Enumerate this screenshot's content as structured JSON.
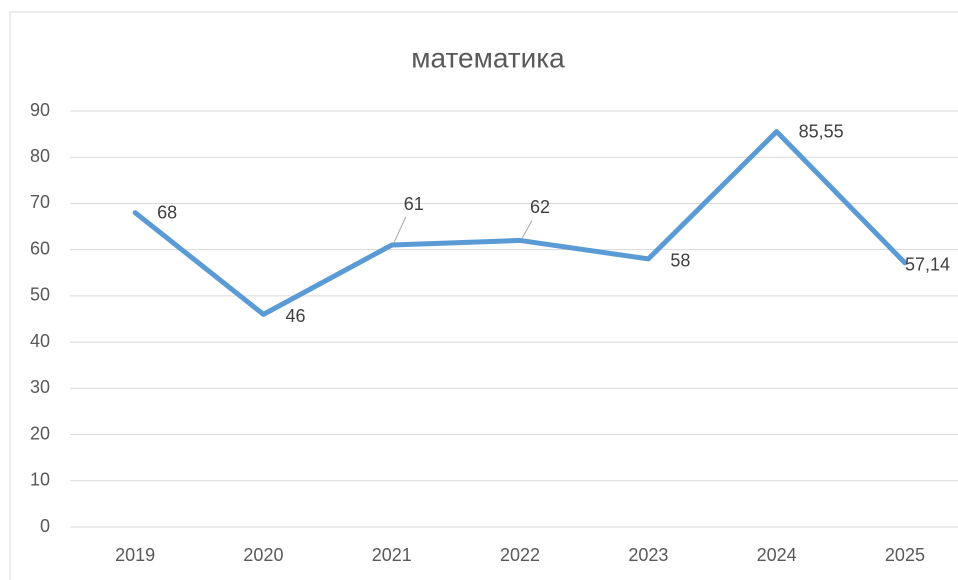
{
  "chart_data": {
    "type": "line",
    "title": "математика",
    "categories": [
      "2019",
      "2020",
      "2021",
      "2022",
      "2023",
      "2024",
      "2025"
    ],
    "values": [
      68,
      46,
      61,
      62,
      58,
      85.55,
      57.14
    ],
    "value_labels": [
      "68",
      "46",
      "61",
      "62",
      "58",
      "85,55",
      "57,14"
    ],
    "color": "#5b9bd5",
    "ylim": [
      0,
      90
    ],
    "yticks": [
      0,
      10,
      20,
      30,
      40,
      50,
      60,
      70,
      80,
      90
    ],
    "grid": true
  }
}
